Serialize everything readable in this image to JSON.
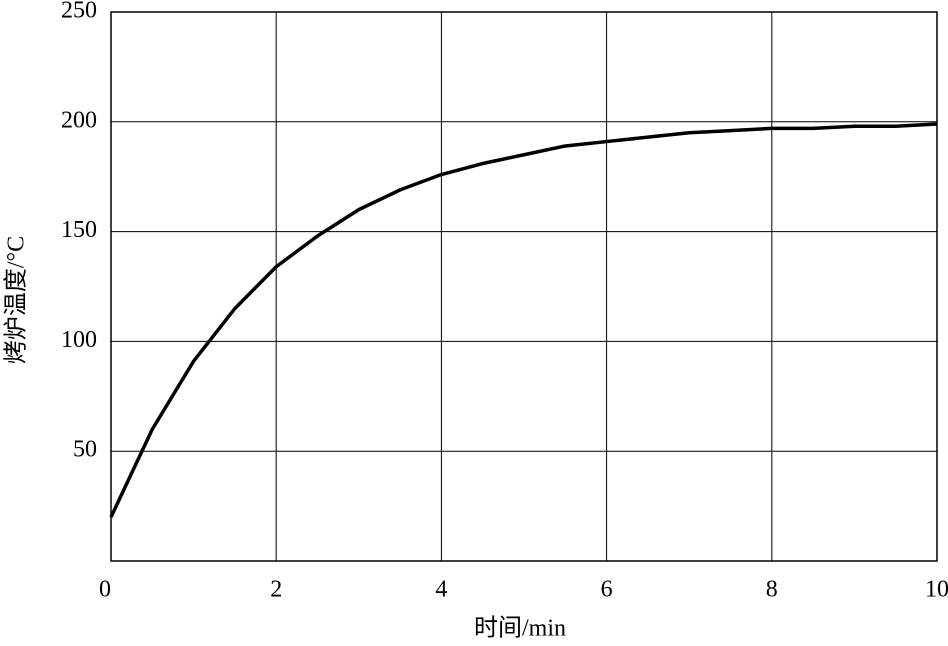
{
  "chart_data": {
    "type": "line",
    "x_label": "时间/min",
    "y_label": "烤炉温度/°C",
    "x": [
      0,
      0.5,
      1,
      1.5,
      2,
      2.5,
      3,
      3.5,
      4,
      4.5,
      5,
      5.5,
      6,
      6.5,
      7,
      7.5,
      8,
      8.5,
      9,
      9.5,
      10
    ],
    "series": [
      {
        "color": "#000000",
        "values": [
          20,
          60,
          91,
          115,
          134,
          148,
          160,
          169,
          176,
          181,
          185,
          189,
          191,
          193,
          195,
          196,
          197,
          197,
          198,
          198,
          199
        ]
      }
    ],
    "xlim": [
      0,
      10
    ],
    "xticks": [
      0,
      2,
      4,
      6,
      8,
      10
    ],
    "ylim": [
      0,
      250
    ],
    "yticks": [
      50,
      100,
      150,
      200,
      250
    ],
    "grid": true
  }
}
